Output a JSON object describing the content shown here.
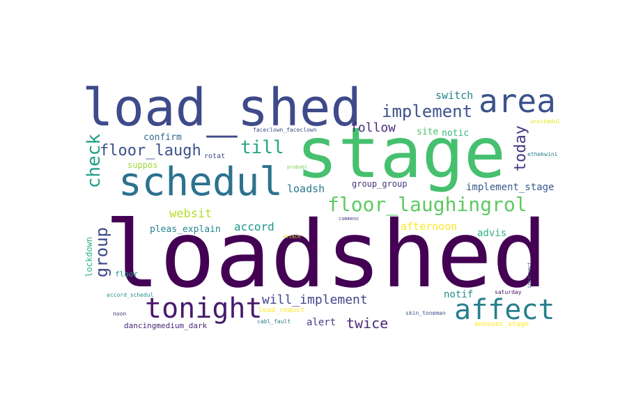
{
  "words": [
    {
      "key": "loadshed",
      "text": "loadshed",
      "color": "#440154"
    },
    {
      "key": "stage",
      "text": "stage",
      "color": "#46c06f"
    },
    {
      "key": "load_shed",
      "text": "load_shed",
      "color": "#3e4a89"
    },
    {
      "key": "schedul",
      "text": "schedul",
      "color": "#2c728e"
    },
    {
      "key": "area",
      "text": "area",
      "color": "#3b528b"
    },
    {
      "key": "affect",
      "text": "affect",
      "color": "#277f8e"
    },
    {
      "key": "tonight",
      "text": "tonight",
      "color": "#481a6c"
    },
    {
      "key": "floor_laughingrol",
      "text": "floor_laughingrol",
      "color": "#5ec962"
    },
    {
      "key": "implement",
      "text": "implement",
      "color": "#3b528b"
    },
    {
      "key": "check",
      "text": "check",
      "color": "#1f9e89"
    },
    {
      "key": "group",
      "text": "group",
      "color": "#3e4a89"
    },
    {
      "key": "till",
      "text": "till",
      "color": "#21a585"
    },
    {
      "key": "today",
      "text": "today",
      "color": "#453781"
    },
    {
      "key": "floor_laugh",
      "text": "floor_laugh",
      "color": "#3b528b"
    },
    {
      "key": "twice",
      "text": "twice",
      "color": "#482878"
    },
    {
      "key": "will_implement",
      "text": "will_implement",
      "color": "#414487"
    },
    {
      "key": "follow",
      "text": "follow",
      "color": "#472c7a"
    },
    {
      "key": "websit",
      "text": "websit",
      "color": "#b5de2b"
    },
    {
      "key": "accord",
      "text": "accord",
      "color": "#1f988b"
    },
    {
      "key": "afternoon",
      "text": "afternoon",
      "color": "#fde725"
    },
    {
      "key": "implement_stage",
      "text": "implement_stage",
      "color": "#38598c"
    },
    {
      "key": "loadsh",
      "text": "loadsh",
      "color": "#2a788e"
    },
    {
      "key": "switch",
      "text": "switch",
      "color": "#26828e"
    },
    {
      "key": "alert",
      "text": "alert",
      "color": "#433e85"
    },
    {
      "key": "advis",
      "text": "advis",
      "color": "#2db27d"
    },
    {
      "key": "notif",
      "text": "notif",
      "color": "#218f8d"
    },
    {
      "key": "notic",
      "text": "notic",
      "color": "#35b779"
    },
    {
      "key": "site",
      "text": "site",
      "color": "#4ac16d"
    },
    {
      "key": "confirm",
      "text": "confirm",
      "color": "#30698e"
    },
    {
      "key": "pleas_explain",
      "text": "pleas_explain",
      "color": "#25858e"
    },
    {
      "key": "suppos",
      "text": "suppos",
      "color": "#a0da39"
    },
    {
      "key": "group_group",
      "text": "group_group",
      "color": "#46327e"
    },
    {
      "key": "lockdown",
      "text": "lockdown",
      "color": "#2fb47c"
    },
    {
      "key": "floor",
      "text": "floor",
      "color": "#1f9a8a"
    },
    {
      "key": "dancingmedium_dark",
      "text": "dancingmedium_dark",
      "color": "#482677"
    },
    {
      "key": "rotat",
      "text": "rotat",
      "color": "#3f4788"
    },
    {
      "key": "load_reduct",
      "text": "load_reduct",
      "color": "#fde725"
    },
    {
      "key": "announc_stage",
      "text": "announc_stage",
      "color": "#fde725"
    },
    {
      "key": "faceclown_faceclown",
      "text": "faceclown_faceclown",
      "color": "#3e4989"
    },
    {
      "key": "unschedul",
      "text": "unschedul",
      "color": "#e5e419"
    },
    {
      "key": "ethekwini",
      "text": "ethekwini",
      "color": "#2a788e"
    },
    {
      "key": "probabl",
      "text": "probabl",
      "color": "#7ad151"
    },
    {
      "key": "commenc",
      "text": "commenc",
      "color": "#443983"
    },
    {
      "key": "attach",
      "text": "attach",
      "color": "#d2e21b"
    },
    {
      "key": "incorrect",
      "text": "incorrect",
      "color": "#355f8d"
    },
    {
      "key": "saturday",
      "text": "saturday",
      "color": "#471164"
    },
    {
      "key": "accord_schedul",
      "text": "accord_schedul",
      "color": "#21918c"
    },
    {
      "key": "noon",
      "text": "noon",
      "color": "#46337f"
    },
    {
      "key": "cabl_fault",
      "text": "cabl_fault",
      "color": "#2a788e"
    },
    {
      "key": "skin_toneman",
      "text": "skin_toneman",
      "color": "#3b528b"
    }
  ]
}
